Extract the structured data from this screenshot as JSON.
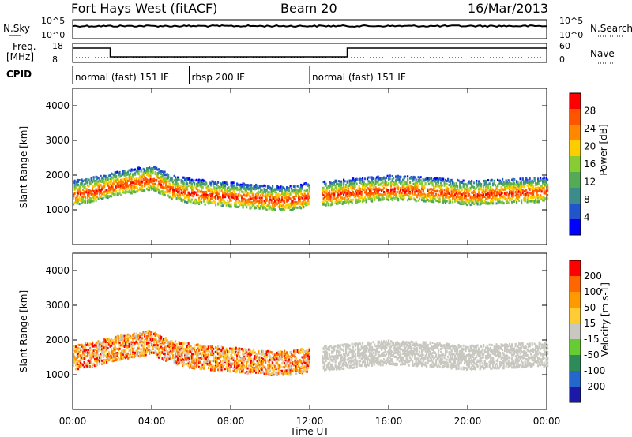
{
  "header": {
    "station": "Fort Hays West (fitACF)",
    "beam": "Beam 20",
    "date": "16/Mar/2013"
  },
  "top_panels": {
    "nsky_label": "N.Sky",
    "nsky_ticks": [
      "10^5",
      "10^0"
    ],
    "nsearch_label": "N.Search",
    "nsearch_ticks": [
      "10^5",
      "10^0"
    ],
    "freq_label_1": "Freq.",
    "freq_label_2": "[MHz]",
    "freq_ticks": [
      "18",
      "8"
    ],
    "nave_label": "Nave",
    "nave_ticks": [
      "60",
      "0"
    ],
    "cpid_label": "CPID"
  },
  "colors": {
    "power_scale": [
      "#0000ff",
      "#2255cc",
      "#3c8c8c",
      "#55aa55",
      "#88cc33",
      "#ffcc00",
      "#ff8800",
      "#ff5500",
      "#ff0000"
    ],
    "velocity_scale": [
      "#1a1aa6",
      "#2466cc",
      "#2e8b57",
      "#66cc33",
      "#c8c8c0",
      "#ffcc33",
      "#ff9900",
      "#ff6600",
      "#ff0000"
    ],
    "power_scale_range": [
      0,
      32
    ],
    "velocity_scale_range": [
      -250,
      250
    ]
  },
  "chart_data": {
    "type": "heatmap",
    "x_ticks": [
      "00:00",
      "04:00",
      "08:00",
      "12:00",
      "16:00",
      "20:00",
      "00:00"
    ],
    "x_range_hours": [
      0,
      24
    ],
    "xlabel": "Time UT",
    "cpid_segments": [
      {
        "label": "normal (fast) 151 IF",
        "start_h": 0.0,
        "end_h": 5.9
      },
      {
        "label": "rbsp 200 IF",
        "start_h": 5.9,
        "end_h": 12.0
      },
      {
        "label": "normal (fast) 151 IF",
        "start_h": 12.0,
        "end_h": 24.0
      }
    ],
    "freq_steps": [
      {
        "start_h": 0.0,
        "end_h": 1.9,
        "level": "high"
      },
      {
        "start_h": 1.9,
        "end_h": 13.9,
        "level": "low"
      },
      {
        "start_h": 13.9,
        "end_h": 24.0,
        "level": "high"
      }
    ],
    "panels": [
      {
        "name": "Power",
        "ylabel": "Slant Range [km]",
        "ylim": [
          0,
          4500
        ],
        "yticks": [
          "1000",
          "2000",
          "3000",
          "4000"
        ],
        "colorbar_label": "Power [dB]",
        "colorbar_ticks": [
          "4",
          "8",
          "12",
          "16",
          "20",
          "24",
          "28"
        ],
        "band_range_km": [
          [
            0.0,
            1450
          ],
          [
            1.0,
            1550
          ],
          [
            2.0,
            1700
          ],
          [
            3.0,
            1800
          ],
          [
            4.0,
            1900
          ],
          [
            5.0,
            1600
          ],
          [
            6.0,
            1500
          ],
          [
            7.0,
            1450
          ],
          [
            8.0,
            1400
          ],
          [
            9.0,
            1350
          ],
          [
            10.0,
            1300
          ],
          [
            11.0,
            1300
          ],
          [
            12.0,
            1400
          ],
          [
            14.0,
            1500
          ],
          [
            15.0,
            1550
          ],
          [
            16.0,
            1600
          ],
          [
            18.0,
            1550
          ],
          [
            20.0,
            1450
          ],
          [
            22.0,
            1500
          ],
          [
            24.0,
            1550
          ]
        ]
      },
      {
        "name": "Velocity",
        "ylabel": "Slant Range [km]",
        "ylim": [
          0,
          4500
        ],
        "yticks": [
          "1000",
          "2000",
          "3000",
          "4000"
        ],
        "colorbar_label": "Velocity [m s-1]",
        "colorbar_ticks": [
          "200",
          "100",
          "50",
          "15",
          "-15",
          "-50",
          "-100",
          "-200"
        ]
      }
    ]
  }
}
